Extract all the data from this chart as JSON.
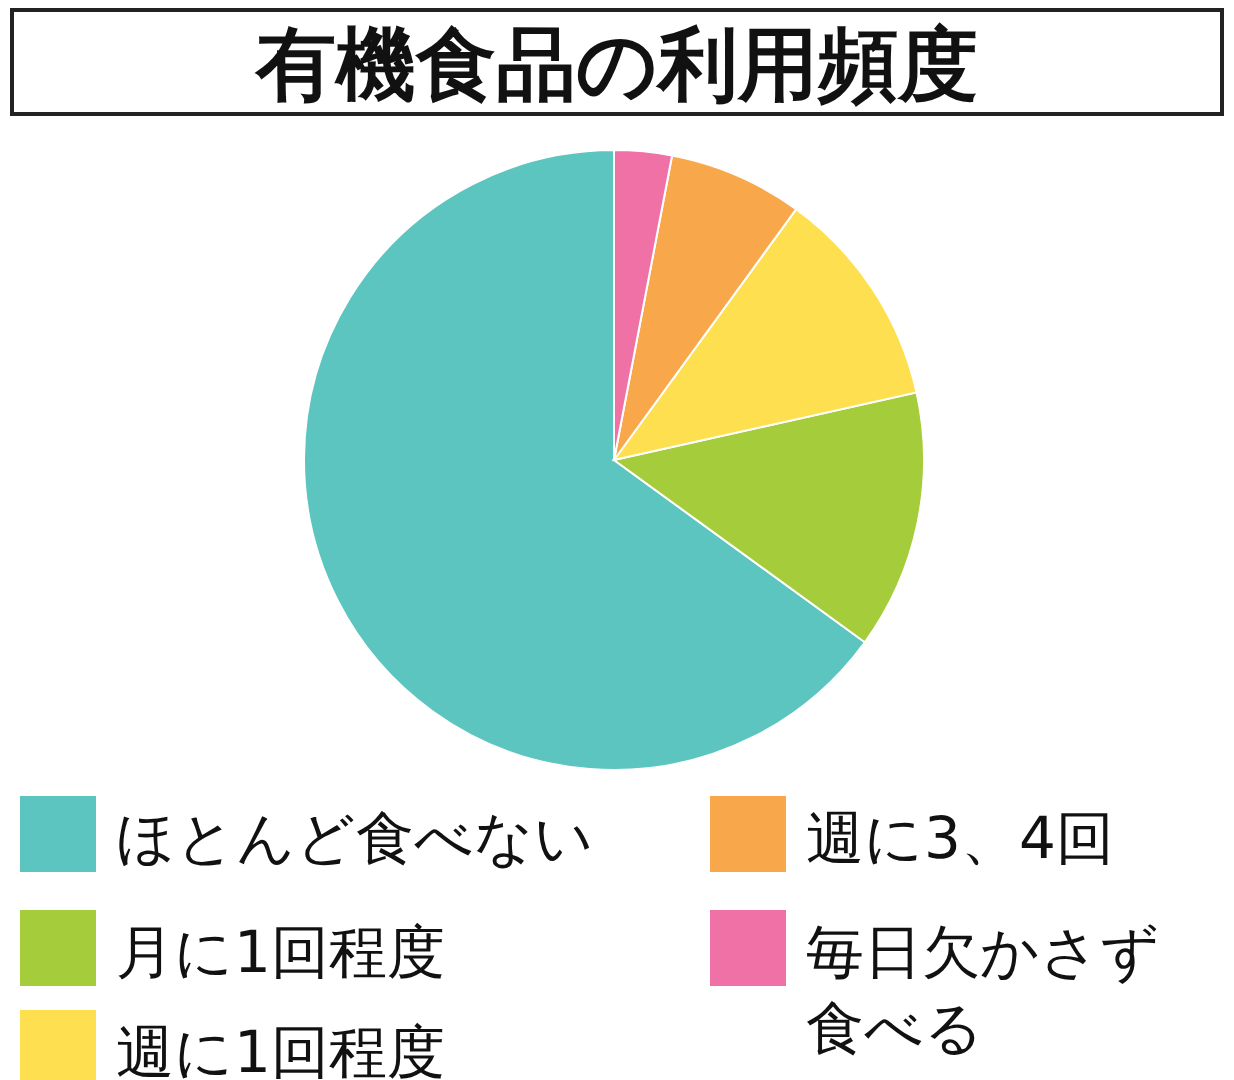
{
  "chart_data": {
    "type": "pie",
    "title": "有機食品の利用頻度",
    "categories": [
      "ほとんど食べない",
      "月に1回程度",
      "週に1回程度",
      "週に3、4回",
      "毎日欠かさず食べる"
    ],
    "values": [
      65,
      13.5,
      11.5,
      7,
      3
    ],
    "colors": [
      "#5cc5bf",
      "#a5cc3a",
      "#fedf4f",
      "#f8a84a",
      "#ef71a5"
    ],
    "legend": "bottom"
  }
}
